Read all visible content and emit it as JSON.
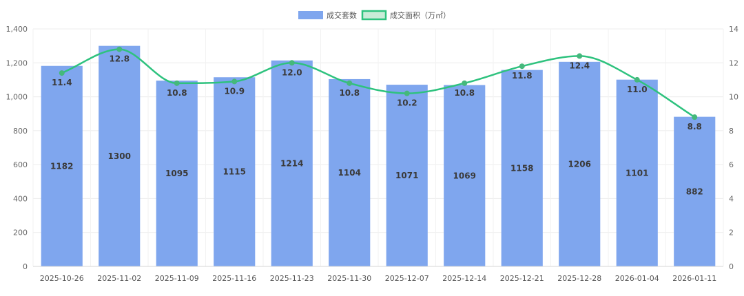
{
  "chart_data": {
    "type": "bar",
    "categories": [
      "2025-10-26",
      "2025-11-02",
      "2025-11-09",
      "2025-11-16",
      "2025-11-23",
      "2025-11-30",
      "2025-12-07",
      "2025-12-14",
      "2025-12-21",
      "2025-12-28",
      "2026-01-04",
      "2026-01-11"
    ],
    "series": [
      {
        "name": "成交套数",
        "type": "bar",
        "axis": "left",
        "color": "#7fa6ee",
        "values": [
          1182,
          1300,
          1095,
          1115,
          1214,
          1104,
          1071,
          1069,
          1158,
          1206,
          1101,
          882
        ]
      },
      {
        "name": "成交面积（万㎡）",
        "type": "line",
        "axis": "right",
        "color": "#2ec27e",
        "point_color": "#45b87c",
        "legend_fill": "#c9ecd8",
        "smooth": true,
        "values": [
          11.4,
          12.8,
          10.8,
          10.9,
          12.0,
          10.8,
          10.2,
          10.8,
          11.8,
          12.4,
          11.0,
          8.8
        ]
      }
    ],
    "y_left": {
      "min": 0,
      "max": 1400,
      "ticks": [
        0,
        200,
        400,
        600,
        800,
        1000,
        1200,
        1400
      ],
      "tick_labels": [
        "0",
        "200",
        "400",
        "600",
        "800",
        "1,000",
        "1,200",
        "1,400"
      ]
    },
    "y_right": {
      "min": 0,
      "max": 14,
      "ticks": [
        0,
        2,
        4,
        6,
        8,
        10,
        12,
        14
      ],
      "tick_labels": [
        "0",
        "2",
        "4",
        "6",
        "8",
        "10",
        "12",
        "14"
      ]
    },
    "bar_data_labels": [
      "1182",
      "1300",
      "1095",
      "1115",
      "1214",
      "1104",
      "1071",
      "1069",
      "1158",
      "1206",
      "1101",
      "882"
    ],
    "line_data_labels": [
      "11.4",
      "12.8",
      "10.8",
      "10.9",
      "12.0",
      "10.8",
      "10.2",
      "10.8",
      "11.8",
      "12.4",
      "11.0",
      "8.8"
    ],
    "grid": true,
    "legend_position": "top"
  }
}
